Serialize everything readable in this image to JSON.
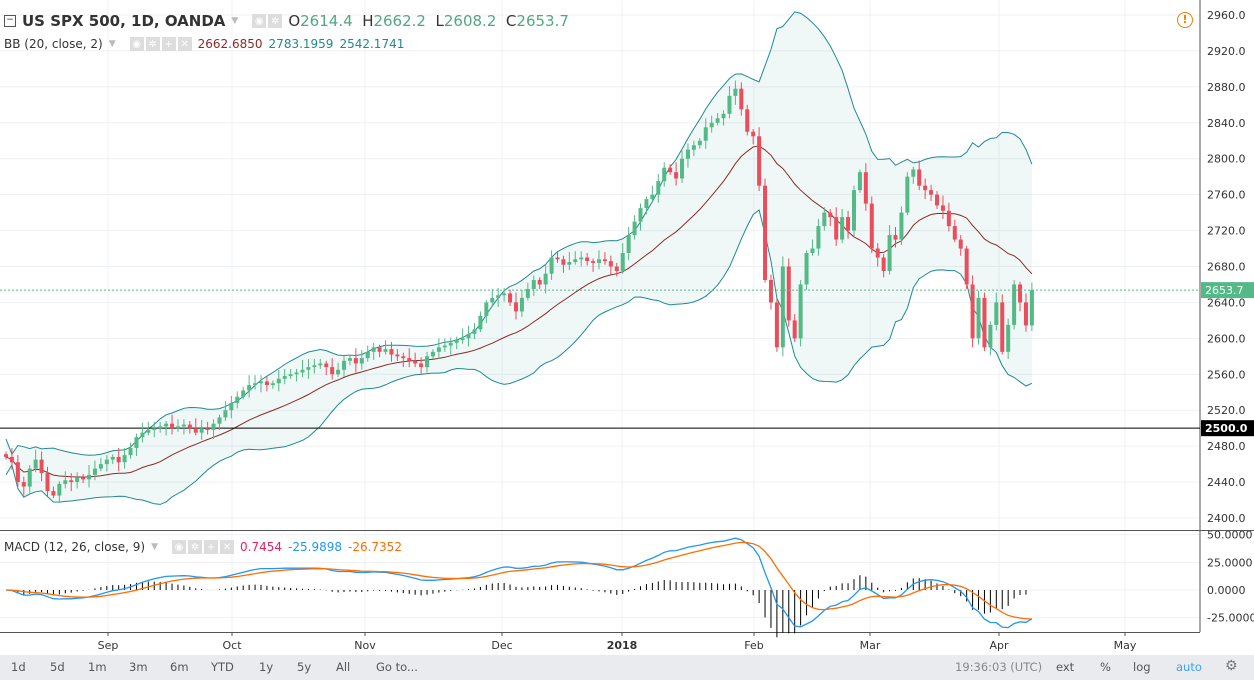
{
  "header": {
    "symbol": "US SPX 500, 1D, OANDA",
    "o_label": "O",
    "o": "2614.4",
    "h_label": "H",
    "h": "2662.2",
    "l_label": "L",
    "l": "2608.2",
    "c_label": "C",
    "c": "2653.7"
  },
  "bb": {
    "label": "BB (20, close, 2)",
    "basis": "2662.6850",
    "upper": "2783.1959",
    "lower": "2542.1741"
  },
  "macd": {
    "label": "MACD (12, 26, close, 9)",
    "hist": "0.7454",
    "macd": "-25.9898",
    "signal": "-26.7352"
  },
  "price_axis": [
    "2960.0",
    "2920.0",
    "2880.0",
    "2840.0",
    "2800.0",
    "2760.0",
    "2720.0",
    "2680.0",
    "2640.0",
    "2600.0",
    "2560.0",
    "2520.0",
    "2480.0",
    "2440.0",
    "2400.0"
  ],
  "macd_axis": [
    "50.0000",
    "25.0000",
    "0.0000",
    "-25.0000"
  ],
  "last_price_label": "2653.7",
  "hline_label": "2500.0",
  "x_ticks": [
    "Sep",
    "Oct",
    "Nov",
    "Dec",
    "2018",
    "Feb",
    "Mar",
    "Apr",
    "May"
  ],
  "toolbar": {
    "ranges": [
      "1d",
      "5d",
      "1m",
      "3m",
      "6m",
      "YTD",
      "1y",
      "5y",
      "All"
    ],
    "goto": "Go to...",
    "time": "19:36:03 (UTC)",
    "ext": "ext",
    "pct": "%",
    "log": "log",
    "auto": "auto"
  },
  "colors": {
    "up": "#53b987",
    "down": "#eb4d5c",
    "bb_band": "#1f8a8f",
    "bb_basis": "#8b2a2a",
    "macd": "#2196f3",
    "signal": "#ff6d00",
    "alert": "#f57c00"
  },
  "chart_data": {
    "type": "candlestick",
    "ylim": [
      2400,
      2960
    ],
    "macd_ylim": [
      -35,
      55
    ],
    "hline": 2500,
    "last_price": 2653.7,
    "last_candle": {
      "open": 2614.4,
      "high": 2662.2,
      "low": 2608.2,
      "close": 2653.7
    },
    "closes": [
      2468,
      2462,
      2440,
      2435,
      2455,
      2465,
      2450,
      2430,
      2425,
      2438,
      2442,
      2440,
      2445,
      2443,
      2448,
      2455,
      2460,
      2465,
      2468,
      2462,
      2470,
      2478,
      2490,
      2495,
      2498,
      2500,
      2502,
      2505,
      2500,
      2502,
      2504,
      2500,
      2495,
      2500,
      2498,
      2505,
      2512,
      2520,
      2528,
      2535,
      2542,
      2548,
      2550,
      2552,
      2548,
      2550,
      2555,
      2558,
      2560,
      2562,
      2565,
      2568,
      2570,
      2572,
      2568,
      2560,
      2565,
      2575,
      2578,
      2572,
      2578,
      2585,
      2590,
      2585,
      2588,
      2582,
      2580,
      2578,
      2575,
      2572,
      2568,
      2580,
      2585,
      2590,
      2592,
      2595,
      2598,
      2600,
      2605,
      2610,
      2625,
      2640,
      2645,
      2648,
      2650,
      2640,
      2630,
      2645,
      2655,
      2665,
      2660,
      2672,
      2690,
      2688,
      2682,
      2685,
      2688,
      2690,
      2686,
      2684,
      2688,
      2686,
      2680,
      2675,
      2695,
      2715,
      2730,
      2745,
      2755,
      2760,
      2775,
      2790,
      2785,
      2778,
      2800,
      2810,
      2815,
      2820,
      2835,
      2840,
      2845,
      2850,
      2870,
      2878,
      2855,
      2830,
      2825,
      2770,
      2665,
      2640,
      2590,
      2680,
      2620,
      2600,
      2660,
      2695,
      2700,
      2725,
      2740,
      2735,
      2710,
      2735,
      2720,
      2765,
      2785,
      2750,
      2700,
      2690,
      2675,
      2715,
      2710,
      2740,
      2780,
      2788,
      2770,
      2765,
      2760,
      2748,
      2742,
      2725,
      2710,
      2700,
      2660,
      2600,
      2645,
      2590,
      2615,
      2640,
      2585,
      2615,
      2660,
      2640,
      2614.4,
      2653.7
    ],
    "bb_params": {
      "length": 20,
      "source": "close",
      "mult": 2
    },
    "macd_params": {
      "fast": 12,
      "slow": 26,
      "source": "close",
      "signal": 9
    }
  }
}
